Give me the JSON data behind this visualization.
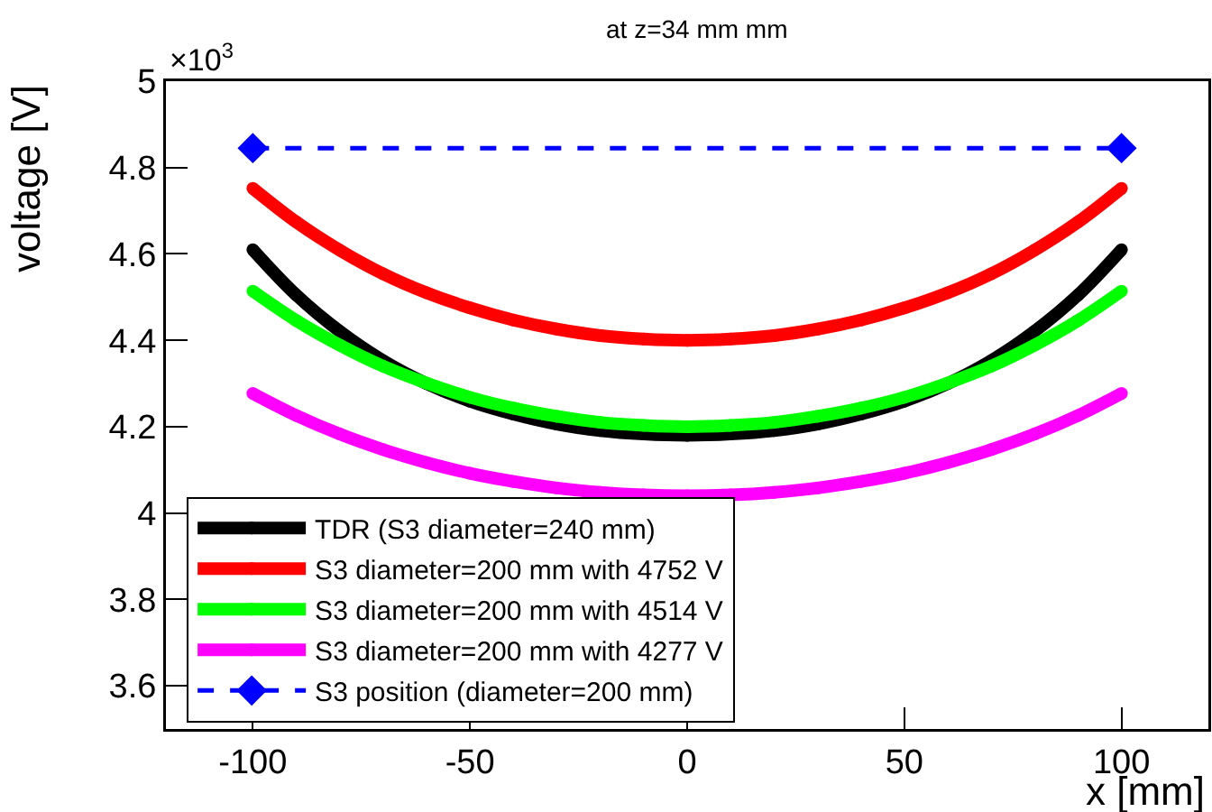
{
  "chart_data": {
    "type": "line",
    "title": "at z=34 mm mm",
    "xlabel": "x [mm]",
    "ylabel": "voltage [V]",
    "annotations": [
      "×10$^{3}$"
    ],
    "x": [
      -100,
      -90,
      -80,
      -70,
      -60,
      -50,
      -40,
      -30,
      -20,
      -10,
      0,
      10,
      20,
      30,
      40,
      50,
      60,
      70,
      80,
      90,
      100
    ],
    "series": [
      {
        "name": "TDR (S3 diameter=240 mm)",
        "color": "#000000",
        "values": [
          4.61,
          4.505,
          4.421,
          4.353,
          4.3,
          4.259,
          4.229,
          4.206,
          4.191,
          4.183,
          4.18,
          4.183,
          4.191,
          4.206,
          4.229,
          4.259,
          4.3,
          4.353,
          4.421,
          4.505,
          4.61
        ]
      },
      {
        "name": "S3 diameter=200 mm with 4752 V",
        "color": "#ff0000",
        "values": [
          4.752,
          4.674,
          4.609,
          4.554,
          4.51,
          4.475,
          4.447,
          4.426,
          4.411,
          4.403,
          4.4,
          4.403,
          4.411,
          4.426,
          4.447,
          4.475,
          4.51,
          4.554,
          4.609,
          4.674,
          4.752
        ]
      },
      {
        "name": "S3 diameter=200 mm with 4514 V",
        "color": "#00ff00",
        "values": [
          4.514,
          4.446,
          4.389,
          4.34,
          4.301,
          4.268,
          4.243,
          4.224,
          4.21,
          4.203,
          4.2,
          4.203,
          4.21,
          4.224,
          4.243,
          4.268,
          4.301,
          4.34,
          4.389,
          4.446,
          4.514
        ]
      },
      {
        "name": "S3 diameter=200 mm with 4277 V",
        "color": "#ff00ff",
        "values": [
          4.277,
          4.226,
          4.183,
          4.147,
          4.117,
          4.092,
          4.073,
          4.058,
          4.048,
          4.042,
          4.04,
          4.042,
          4.048,
          4.058,
          4.073,
          4.092,
          4.117,
          4.147,
          4.183,
          4.226,
          4.277
        ]
      },
      {
        "name": "S3 position (diameter=200 mm)",
        "color": "#0000ff",
        "x": [
          -100,
          100
        ],
        "values": [
          4.845,
          4.845
        ],
        "marker": "diamond",
        "line_style": "dashed"
      }
    ],
    "xlim": [
      -120,
      120
    ],
    "xticks": [
      -100,
      -50,
      0,
      50,
      100
    ],
    "ylim": [
      3.5,
      5
    ],
    "yticks": [
      3.6,
      3.8,
      4,
      4.2,
      4.4,
      4.6,
      4.8,
      5
    ],
    "marker": "circle",
    "line_style": "solid",
    "legend": "bottom left"
  }
}
